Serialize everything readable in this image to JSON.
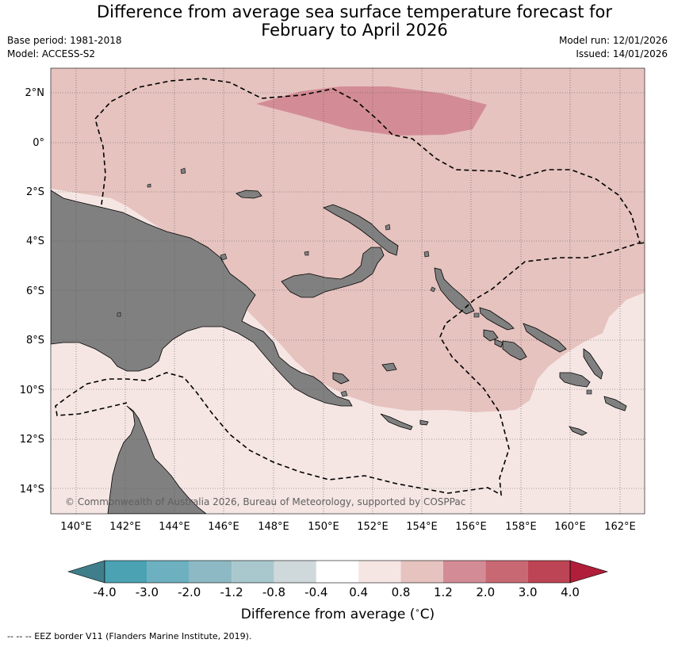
{
  "title_line1": "Difference from average sea surface temperature forecast for",
  "title_line2": "February to April 2026",
  "base_period": "Base period: 1981-2018",
  "model": "Model: ACCESS-S2",
  "model_run": "Model run: 12/01/2026",
  "issued": "Issued: 14/01/2026",
  "copyright": "© Commonwealth of Australia 2026, Bureau of Meteorology, supported by COSPPac",
  "lat_labels": [
    "2°N",
    "0°",
    "2°S",
    "4°S",
    "6°S",
    "8°S",
    "10°S",
    "12°S",
    "14°S"
  ],
  "lon_labels": [
    "140°E",
    "142°E",
    "144°E",
    "146°E",
    "148°E",
    "150°E",
    "152°E",
    "154°E",
    "156°E",
    "158°E",
    "160°E",
    "162°E"
  ],
  "legend": {
    "title": "Difference from average (°C)",
    "ticks": [
      "-4.0",
      "-3.0",
      "-2.0",
      "-1.2",
      "-0.8",
      "-0.4",
      "0.4",
      "0.8",
      "1.2",
      "2.0",
      "3.0",
      "4.0"
    ],
    "colors": [
      "#3f7e8a",
      "#4aa2b3",
      "#6db0bf",
      "#8db9c4",
      "#a9c8cd",
      "#cfd9db",
      "#ffffff",
      "#f5e6e4",
      "#e6c3bf",
      "#d38c95",
      "#c76872",
      "#bd4454",
      "#b01e3a"
    ]
  },
  "footer_note": "--  --  -- EEZ border V11 (Flanders Marine Institute, 2019).",
  "colors": {
    "land": "#808080",
    "anomaly_0_4_0_8": "#f5e6e4",
    "anomaly_0_8_1_2": "#e6c3bf",
    "anomaly_1_2_2_0": "#d38c95"
  }
}
